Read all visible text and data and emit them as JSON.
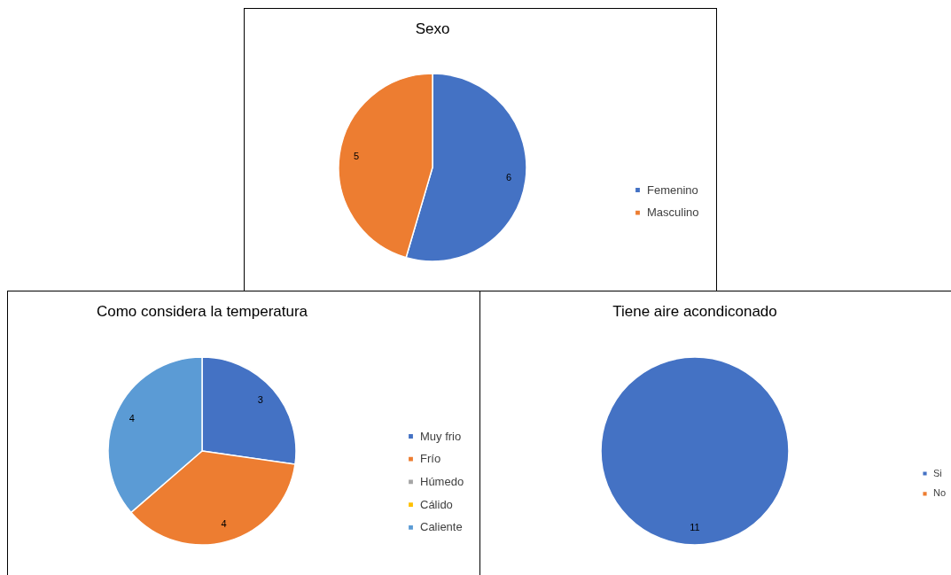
{
  "chart_data": [
    {
      "type": "pie",
      "title": "Sexo",
      "categories": [
        "Femenino",
        "Masculino"
      ],
      "values": [
        6,
        5
      ],
      "colors": [
        "#4472c4",
        "#ed7d31"
      ],
      "value_labels": [
        "6",
        "5"
      ],
      "legend": "right"
    },
    {
      "type": "pie",
      "title": "Como considera la temperatura",
      "categories": [
        "Muy frio",
        "Frío",
        "Húmedo",
        "Cálido",
        "Caliente"
      ],
      "values": [
        3,
        4,
        0,
        0,
        4
      ],
      "colors": [
        "#4472c4",
        "#ed7d31",
        "#a5a5a5",
        "#ffc000",
        "#5b9bd5"
      ],
      "value_labels": [
        "3",
        "4",
        null,
        null,
        "4"
      ],
      "legend": "right"
    },
    {
      "type": "pie",
      "title": "Tiene aire acondiconado",
      "categories": [
        "Si",
        "No"
      ],
      "values": [
        11,
        0
      ],
      "colors": [
        "#4472c4",
        "#ed7d31"
      ],
      "value_labels": [
        "11",
        null
      ],
      "legend": "right"
    }
  ]
}
